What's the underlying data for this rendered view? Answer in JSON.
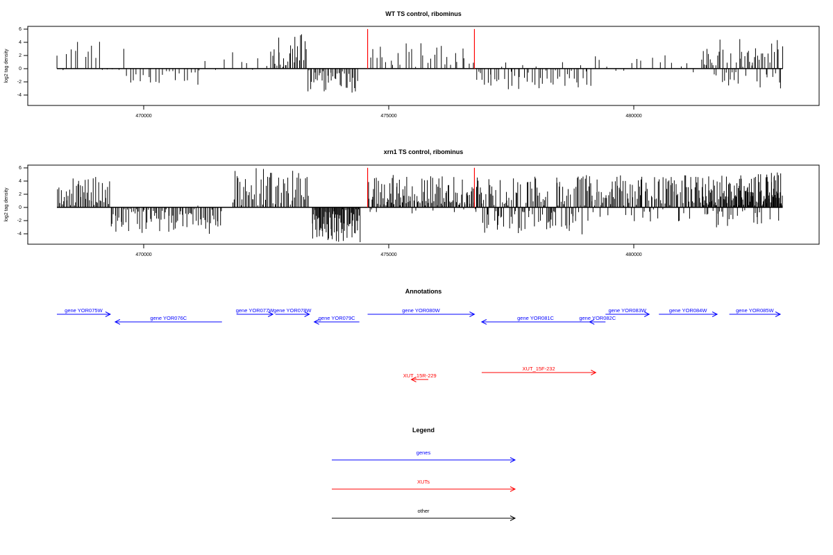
{
  "panels": [
    {
      "title": "WT TS control, ribominus",
      "ylabel": "log2 tag density",
      "ytick_labels": [
        "6",
        "4",
        "2",
        "0",
        "-2",
        "-4"
      ],
      "xtick_labels": [
        "470000",
        "475000",
        "480000"
      ]
    },
    {
      "title": "xrn1 TS control, ribominus",
      "ylabel": "log2 tag density",
      "ytick_labels": [
        "6",
        "4",
        "2",
        "0",
        "-2",
        "-4"
      ],
      "xtick_labels": [
        "470000",
        "475000",
        "480000"
      ]
    }
  ],
  "annotations": {
    "title": "Annotations",
    "genes": [
      {
        "label": "gene YOR075W",
        "start": 468200,
        "end": 469300,
        "strand": "+",
        "row": 0
      },
      {
        "label": "gene YOR076C",
        "start": 469400,
        "end": 471600,
        "strand": "-",
        "row": 1
      },
      {
        "label": "gene YOR077W",
        "start": 471900,
        "end": 472650,
        "strand": "+",
        "row": 0
      },
      {
        "label": "gene YOR078W",
        "start": 472700,
        "end": 473400,
        "strand": "+",
        "row": 0
      },
      {
        "label": "gene YOR079C",
        "start": 473500,
        "end": 474430,
        "strand": "-",
        "row": 1
      },
      {
        "label": "gene YOR080W",
        "start": 474600,
        "end": 476800,
        "strand": "+",
        "row": 0
      },
      {
        "label": "gene YOR081C",
        "start": 476950,
        "end": 479170,
        "strand": "-",
        "row": 1
      },
      {
        "label": "gene YOR082C",
        "start": 479170,
        "end": 479500,
        "strand": "-",
        "row": 1
      },
      {
        "label": "gene YOR083W",
        "start": 479500,
        "end": 480400,
        "strand": "+",
        "row": 0
      },
      {
        "label": "gene YOR084W",
        "start": 480600,
        "end": 481800,
        "strand": "+",
        "row": 0
      },
      {
        "label": "gene YOR085W",
        "start": 482050,
        "end": 483100,
        "strand": "+",
        "row": 0
      }
    ],
    "xuts": [
      {
        "label": "XUT_15R-229",
        "start": 475500,
        "end": 475850,
        "strand": "-",
        "row": 3
      },
      {
        "label": "XUT_15F-232",
        "start": 476950,
        "end": 479300,
        "strand": "+",
        "row": 2
      }
    ]
  },
  "legend": {
    "title": "Legend",
    "items": [
      {
        "label": "genes",
        "color": "#0000ff"
      },
      {
        "label": "XUTs",
        "color": "#ff0000"
      },
      {
        "label": "other",
        "color": "#000000"
      }
    ]
  },
  "chart_data": [
    {
      "type": "bar",
      "title": "WT TS control, ribominus",
      "xlabel": "",
      "ylabel": "log2 tag density",
      "xlim": [
        467600,
        483900
      ],
      "ylim": [
        -5.5,
        6.3
      ],
      "xticks": [
        470000,
        475000,
        480000
      ],
      "yticks": [
        6,
        4,
        2,
        0,
        -2,
        -4
      ],
      "grid": false,
      "bar_color": "#000000",
      "markers": {
        "color": "#ff0000",
        "x": [
          474600,
          476800
        ],
        "top": 5.9
      },
      "segments": [
        {
          "from": 468200,
          "to": 469600,
          "count": 18,
          "pos": 0.6,
          "pmax": 4.2,
          "neg": 0.0,
          "nmax": 0
        },
        {
          "from": 469600,
          "to": 471200,
          "count": 22,
          "pos": 0.05,
          "pmax": 1.5,
          "neg": 0.9,
          "nmax": 2.4
        },
        {
          "from": 471200,
          "to": 472600,
          "count": 10,
          "pos": 0.9,
          "pmax": 2.5,
          "neg": 0.0,
          "nmax": 0
        },
        {
          "from": 472600,
          "to": 473350,
          "count": 26,
          "pos": 1.0,
          "pmax": 5.2,
          "neg": 0.0,
          "nmax": 0
        },
        {
          "from": 473350,
          "to": 474400,
          "count": 36,
          "pos": 0.0,
          "pmax": 0,
          "neg": 1.0,
          "nmax": 3.6
        },
        {
          "from": 474600,
          "to": 476800,
          "count": 30,
          "pos": 1.0,
          "pmax": 4.0,
          "neg": 0.0,
          "nmax": 0
        },
        {
          "from": 476800,
          "to": 479200,
          "count": 50,
          "pos": 0.08,
          "pmax": 1.5,
          "neg": 0.92,
          "nmax": 3.1
        },
        {
          "from": 479200,
          "to": 481500,
          "count": 16,
          "pos": 0.8,
          "pmax": 2.2,
          "neg": 0.2,
          "nmax": 1.0
        },
        {
          "from": 481500,
          "to": 483150,
          "count": 60,
          "pos": 0.72,
          "pmax": 4.4,
          "neg": 0.28,
          "nmax": 3.0
        }
      ]
    },
    {
      "type": "bar",
      "title": "xrn1 TS control, ribominus",
      "xlabel": "",
      "ylabel": "log2 tag density",
      "xlim": [
        467600,
        483900
      ],
      "ylim": [
        -5.5,
        6.3
      ],
      "xticks": [
        470000,
        475000,
        480000
      ],
      "yticks": [
        6,
        4,
        2,
        0,
        -2,
        -4
      ],
      "grid": false,
      "bar_color": "#000000",
      "markers": {
        "color": "#ff0000",
        "x": [
          474600,
          476800
        ],
        "top": 5.9
      },
      "segments": [
        {
          "from": 468200,
          "to": 469300,
          "count": 45,
          "pos": 1.0,
          "pmax": 4.6,
          "neg": 0.0,
          "nmax": 0
        },
        {
          "from": 469300,
          "to": 471600,
          "count": 80,
          "pos": 0.03,
          "pmax": 1.0,
          "neg": 0.97,
          "nmax": 4.0
        },
        {
          "from": 471800,
          "to": 473400,
          "count": 55,
          "pos": 1.0,
          "pmax": 5.9,
          "neg": 0.0,
          "nmax": 0
        },
        {
          "from": 473450,
          "to": 474450,
          "count": 70,
          "pos": 0.0,
          "pmax": 0,
          "neg": 1.0,
          "nmax": 5.2
        },
        {
          "from": 474600,
          "to": 476800,
          "count": 110,
          "pos": 0.95,
          "pmax": 5.0,
          "neg": 0.05,
          "nmax": 1.0
        },
        {
          "from": 476800,
          "to": 479200,
          "count": 130,
          "pos": 0.5,
          "pmax": 4.8,
          "neg": 0.5,
          "nmax": 4.2
        },
        {
          "from": 479200,
          "to": 481500,
          "count": 110,
          "pos": 0.82,
          "pmax": 4.8,
          "neg": 0.18,
          "nmax": 2.5
        },
        {
          "from": 481500,
          "to": 483150,
          "count": 150,
          "pos": 0.8,
          "pmax": 5.2,
          "neg": 0.2,
          "nmax": 3.0
        }
      ]
    }
  ]
}
